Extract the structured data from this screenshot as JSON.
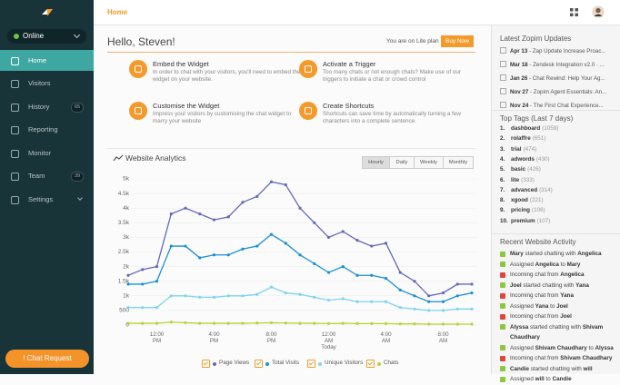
{
  "sidebar": {
    "status": "Online",
    "menu": [
      {
        "label": "Home",
        "active": true
      },
      {
        "label": "Visitors"
      },
      {
        "label": "History",
        "badge": 65
      },
      {
        "label": "Reporting"
      },
      {
        "label": "Monitor"
      },
      {
        "label": "Team",
        "badge": 39
      },
      {
        "label": "Settings"
      }
    ],
    "chat_button": "! Chat Request"
  },
  "topbar": {
    "title": "Home"
  },
  "greeting": "Hello, Steven!",
  "plan": "You are on Lite plan",
  "buy_button": "Buy Now",
  "features": [
    {
      "title": "Embed the Widget",
      "text": "In order to chat with your visitors, you'll need to embed the widget on your website."
    },
    {
      "title": "Activate a Trigger",
      "text": "Too many chats or not enough chats? Make use of our triggers to initiate a chat or crowd control"
    },
    {
      "title": "Customise the Widget",
      "text": "Impress your visitors by customising the chat widget to marry your website"
    },
    {
      "title": "Create Shortcuts",
      "text": "Shortcuts can save time by automatically turning a few characters into a complete sentence."
    }
  ],
  "chart_data": {
    "type": "line",
    "title": "Website Analytics",
    "ranges": [
      "Hourly",
      "Daily",
      "Weekly",
      "Monthly"
    ],
    "active_range": 0,
    "categories": [
      null,
      null,
      "12:00\nPM",
      null,
      null,
      null,
      "4:00\nPM",
      null,
      null,
      null,
      "8:00\nPM",
      null,
      null,
      null,
      "12:00\nAM\nToday",
      null,
      null,
      null,
      "4:00\nAM",
      null,
      null,
      null,
      "8:00\nAM",
      null,
      null
    ],
    "ylim": [
      0,
      5000
    ],
    "yticks": [
      0,
      500,
      {
        "value": 1000,
        "label": "1k"
      },
      {
        "value": 1500,
        "label": "1.5k"
      },
      {
        "value": 2000,
        "label": "2k"
      },
      {
        "value": 2500,
        "label": "2.5k"
      },
      {
        "value": 3000,
        "label": "3k"
      },
      {
        "value": 3500,
        "label": "3.5k"
      },
      {
        "value": 4000,
        "label": "4k"
      },
      {
        "value": 4500,
        "label": "4.5k"
      },
      {
        "value": 5000,
        "label": "5k"
      }
    ],
    "grid": true,
    "legend": "bottom",
    "series": [
      {
        "name": "Page Views",
        "color": "#6568b9",
        "values": [
          1700,
          1900,
          2000,
          3800,
          4000,
          3800,
          3600,
          3700,
          4200,
          4400,
          4900,
          4800,
          4000,
          3500,
          3000,
          3200,
          2900,
          2700,
          2800,
          1800,
          1500,
          1000,
          1100,
          1400,
          1400
        ]
      },
      {
        "name": "Total Visits",
        "color": "#1a8fd6",
        "values": [
          1400,
          1400,
          1500,
          2700,
          2700,
          2300,
          2400,
          2400,
          2600,
          2700,
          3100,
          2800,
          2400,
          2100,
          1800,
          2000,
          1700,
          1700,
          1600,
          1200,
          1000,
          800,
          800,
          1000,
          1100
        ]
      },
      {
        "name": "Unique Visitors",
        "color": "#7fd4ee",
        "values": [
          600,
          600,
          600,
          1000,
          1000,
          950,
          950,
          1000,
          1000,
          1050,
          1300,
          1100,
          1050,
          950,
          850,
          900,
          800,
          800,
          800,
          600,
          550,
          500,
          500,
          550,
          550
        ]
      },
      {
        "name": "Chats",
        "color": "#b6d43a",
        "values": [
          60,
          60,
          60,
          100,
          80,
          60,
          60,
          60,
          60,
          70,
          80,
          70,
          60,
          60,
          50,
          60,
          50,
          50,
          50,
          40,
          40,
          30,
          30,
          30,
          30
        ]
      }
    ]
  },
  "updates": {
    "title": "Latest Zopim Updates",
    "items": [
      {
        "date": "Apr 13",
        "text": " - Zap Update Increase Proac..."
      },
      {
        "date": "Mar 18",
        "text": " - Zendesk Integration v2.0 · ..."
      },
      {
        "date": "Jan 26",
        "text": " - Chat Rewind: Help Your Ag..."
      },
      {
        "date": "Nov 27",
        "text": " - Zopim Agent Essentials: An..."
      },
      {
        "date": "Nov 24",
        "text": " - The First Chat Experience..."
      }
    ]
  },
  "tags": {
    "title": "Top Tags (Last 7 days)",
    "items": [
      {
        "rank": "1.",
        "name": "dashboard",
        "count": "(1059)"
      },
      {
        "rank": "2.",
        "name": "rolaffre",
        "count": "(651)"
      },
      {
        "rank": "3.",
        "name": "trial",
        "count": "(474)"
      },
      {
        "rank": "4.",
        "name": "adwords",
        "count": "(430)"
      },
      {
        "rank": "5.",
        "name": "basic",
        "count": "(426)"
      },
      {
        "rank": "6.",
        "name": "lite",
        "count": "(333)"
      },
      {
        "rank": "7.",
        "name": "advanced",
        "count": "(314)"
      },
      {
        "rank": "8.",
        "name": "xgood",
        "count": "(221)"
      },
      {
        "rank": "9.",
        "name": "pricing",
        "count": "(106)"
      },
      {
        "rank": "10.",
        "name": "premium",
        "count": "(107)"
      }
    ]
  },
  "activity": {
    "title": "Recent Website Activity",
    "items": [
      {
        "color": "#8dc63f",
        "parts": [
          {
            "text": "Mary",
            "bold": true
          },
          {
            "text": " started chatting with ",
            "bold": false
          },
          {
            "text": "Angelica",
            "bold": true
          }
        ]
      },
      {
        "color": "#8dc63f",
        "parts": [
          {
            "text": "Assigned ",
            "bold": false
          },
          {
            "text": "Angelica",
            "bold": true
          },
          {
            "text": " to ",
            "bold": false
          },
          {
            "text": "Mary",
            "bold": true
          }
        ]
      },
      {
        "color": "#e2463a",
        "parts": [
          {
            "text": "Incoming chat from ",
            "bold": false
          },
          {
            "text": "Angelica",
            "bold": true
          }
        ]
      },
      {
        "color": "#8dc63f",
        "parts": [
          {
            "text": "Joel",
            "bold": true
          },
          {
            "text": " started chatting with ",
            "bold": false
          },
          {
            "text": "Yana",
            "bold": true
          }
        ]
      },
      {
        "color": "#e2463a",
        "parts": [
          {
            "text": "Incoming chat from ",
            "bold": false
          },
          {
            "text": "Yana",
            "bold": true
          }
        ]
      },
      {
        "color": "#8dc63f",
        "parts": [
          {
            "text": "Assigned ",
            "bold": false
          },
          {
            "text": "Yana",
            "bold": true
          },
          {
            "text": " to ",
            "bold": false
          },
          {
            "text": "Joel",
            "bold": true
          }
        ]
      },
      {
        "color": "#e2463a",
        "parts": [
          {
            "text": "Incoming chat from ",
            "bold": false
          },
          {
            "text": "Joel",
            "bold": true
          }
        ]
      },
      {
        "color": "#8dc63f",
        "parts": [
          {
            "text": "Alyssa",
            "bold": true
          },
          {
            "text": " started chatting with ",
            "bold": false
          },
          {
            "text": "Shivam Chaudhary",
            "bold": true
          }
        ]
      },
      {
        "color": "#8dc63f",
        "parts": [
          {
            "text": "Assigned ",
            "bold": false
          },
          {
            "text": "Shivam Chaudhary",
            "bold": true
          },
          {
            "text": " to ",
            "bold": false
          },
          {
            "text": "Alyssa",
            "bold": true
          }
        ]
      },
      {
        "color": "#e2463a",
        "parts": [
          {
            "text": "Incoming chat from ",
            "bold": false
          },
          {
            "text": "Shivam Chaudhary",
            "bold": true
          }
        ]
      },
      {
        "color": "#8dc63f",
        "parts": [
          {
            "text": "Candie",
            "bold": true
          },
          {
            "text": " started chatting with ",
            "bold": false
          },
          {
            "text": "will",
            "bold": true
          }
        ]
      },
      {
        "color": "#8dc63f",
        "parts": [
          {
            "text": "Assigned ",
            "bold": false
          },
          {
            "text": "will",
            "bold": true
          },
          {
            "text": " to ",
            "bold": false
          },
          {
            "text": "Candie",
            "bold": true
          }
        ]
      }
    ]
  }
}
